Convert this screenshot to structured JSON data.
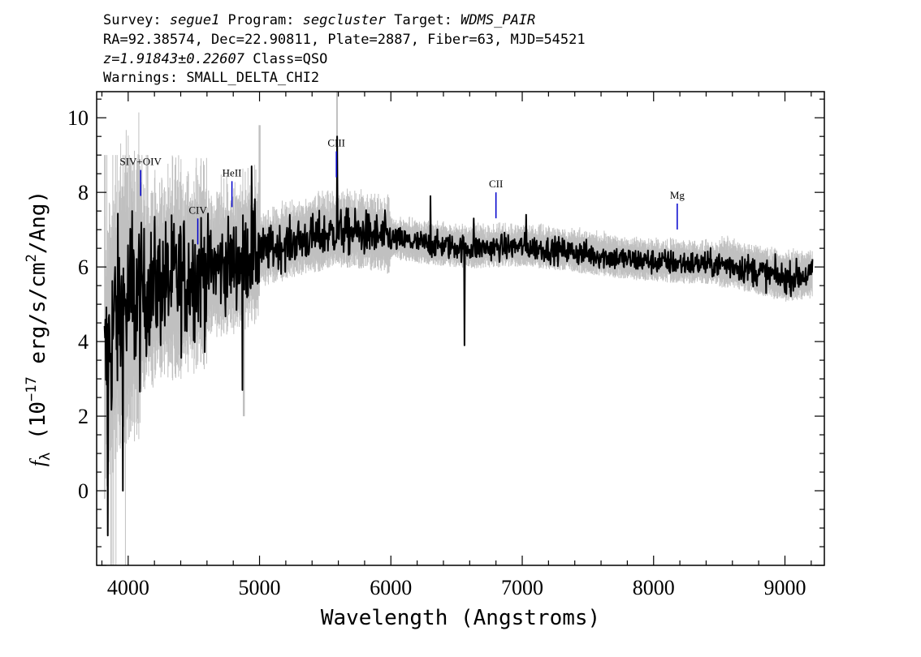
{
  "header": {
    "line1": {
      "survey_label": "Survey: ",
      "survey": "segue1",
      "program_label": " Program: ",
      "program": "segcluster",
      "target_label": " Target: ",
      "target": "WDMS_PAIR"
    },
    "line2": "RA=92.38574, Dec=22.90811, Plate=2887, Fiber=63, MJD=54521",
    "line3": {
      "redshift": "z=1.91843±0.22607",
      "class_text": " Class=QSO"
    },
    "line4": "Warnings: SMALL_DELTA_CHI2"
  },
  "chart_data": {
    "type": "line",
    "xlabel": "Wavelength (Angstroms)",
    "ylabel_prefix": "f",
    "ylabel_sub": "λ",
    "ylabel_unit_a": " (10",
    "ylabel_exp1": "−17",
    "ylabel_unit_b": " erg/s/cm",
    "ylabel_exp2": "2",
    "ylabel_unit_c": "/Ang)",
    "xlim": [
      3760,
      9300
    ],
    "ylim": [
      -2.0,
      10.7
    ],
    "x_ticks": [
      4000,
      5000,
      6000,
      7000,
      8000,
      9000
    ],
    "x_tick_labels": [
      "4000",
      "5000",
      "6000",
      "7000",
      "8000",
      "9000"
    ],
    "y_ticks": [
      0,
      2,
      4,
      6,
      8,
      10
    ],
    "y_tick_labels": [
      "0",
      "2",
      "4",
      "6",
      "8",
      "10"
    ],
    "series": [
      {
        "role": "flux",
        "color": "#000000",
        "x_range": [
          3820,
          9210
        ],
        "continuum": [
          [
            3820,
            3.2
          ],
          [
            3900,
            4.6
          ],
          [
            4000,
            5.0
          ],
          [
            4200,
            5.5
          ],
          [
            4400,
            5.7
          ],
          [
            4600,
            5.95
          ],
          [
            4800,
            6.1
          ],
          [
            5000,
            6.4
          ],
          [
            5300,
            6.7
          ],
          [
            5600,
            6.95
          ],
          [
            5800,
            6.9
          ],
          [
            6000,
            6.75
          ],
          [
            6300,
            6.6
          ],
          [
            6600,
            6.5
          ],
          [
            7000,
            6.55
          ],
          [
            7400,
            6.4
          ],
          [
            7800,
            6.2
          ],
          [
            8200,
            6.1
          ],
          [
            8600,
            6.05
          ],
          [
            9000,
            5.7
          ],
          [
            9210,
            5.8
          ]
        ]
      },
      {
        "role": "noise",
        "color": "#c0c0c0"
      }
    ],
    "features": [
      {
        "x": 3845,
        "y": -1.2
      },
      {
        "x": 3900,
        "y": 6.0
      },
      {
        "x": 3960,
        "y": 0.0
      },
      {
        "x": 4030,
        "y": 7.5
      },
      {
        "x": 4870,
        "y": 2.7
      },
      {
        "x": 4940,
        "y": 8.7
      },
      {
        "x": 5590,
        "y": 9.5
      },
      {
        "x": 6300,
        "y": 7.9
      },
      {
        "x": 6560,
        "y": 3.9
      },
      {
        "x": 6630,
        "y": 7.3
      },
      {
        "x": 7030,
        "y": 7.4
      }
    ],
    "emission_lines": [
      {
        "label": "SIV+OIV",
        "x": 4095,
        "y_top": 8.6
      },
      {
        "label": "CIV",
        "x": 4530,
        "y_top": 7.3
      },
      {
        "label": "HeII",
        "x": 4790,
        "y_top": 8.3
      },
      {
        "label": "CIII",
        "x": 5585,
        "y_top": 9.1
      },
      {
        "label": "CII",
        "x": 6800,
        "y_top": 8.0
      },
      {
        "label": "Mg",
        "x": 8180,
        "y_top": 7.7
      }
    ],
    "line_marker_color": "#0000cc",
    "grid": false,
    "legend": "none"
  }
}
